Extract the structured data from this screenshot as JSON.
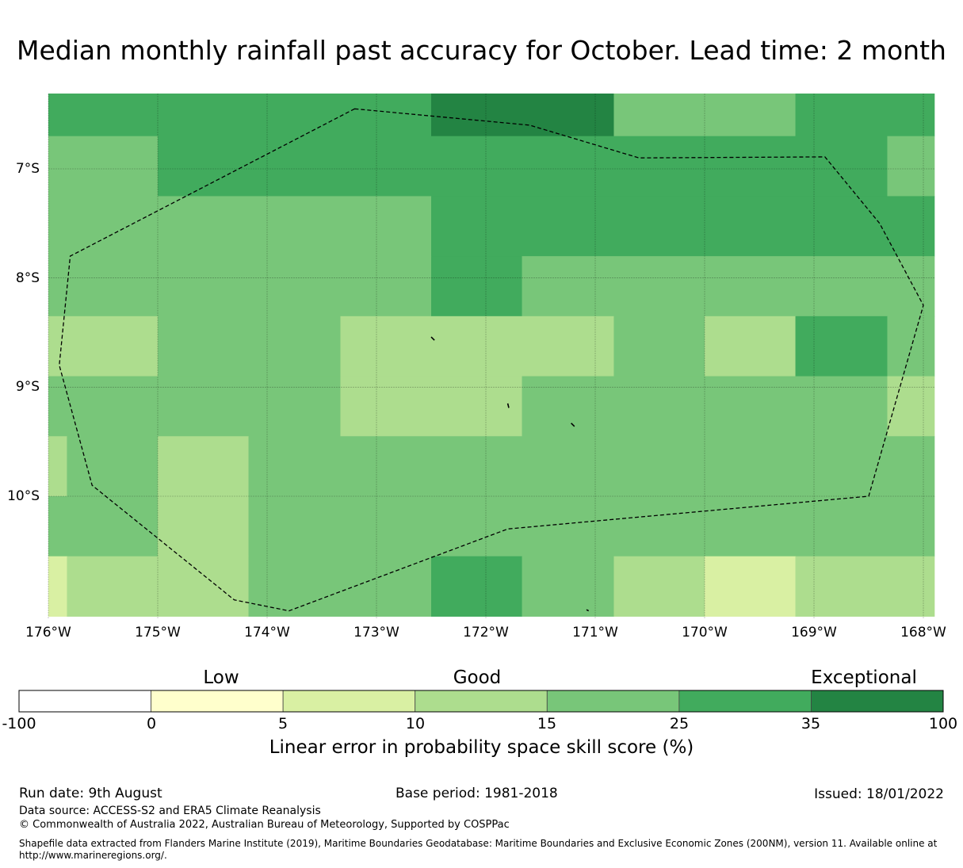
{
  "title": "Median monthly rainfall past accuracy for October. Lead time: 2 month",
  "map": {
    "lon_range": [
      -176,
      -167.9
    ],
    "lat_range": [
      -11.1,
      -6.3
    ],
    "lat_labels": [
      "7°S",
      "8°S",
      "9°S",
      "10°S"
    ],
    "lon_labels": [
      "176°W",
      "175°W",
      "174°W",
      "173°W",
      "172°W",
      "171°W",
      "170°W",
      "169°W",
      "168°W"
    ],
    "eez_boundary": [
      [
        -173.2,
        -6.45
      ],
      [
        -171.6,
        -6.6
      ],
      [
        -170.6,
        -6.9
      ],
      [
        -168.9,
        -6.89
      ],
      [
        -168.4,
        -7.5
      ],
      [
        -168.0,
        -8.25
      ],
      [
        -168.5,
        -10.0
      ],
      [
        -171.8,
        -10.3
      ],
      [
        -173.8,
        -11.05
      ],
      [
        -174.3,
        -10.95
      ],
      [
        -175.6,
        -9.9
      ],
      [
        -175.9,
        -8.8
      ],
      [
        -175.8,
        -7.8
      ],
      [
        -173.2,
        -6.45
      ]
    ],
    "skill_grid": [
      {
        "lon": [
          -176,
          -175
        ],
        "lat": [
          -6.3,
          -6.7
        ],
        "class": 5
      },
      {
        "lon": [
          -175,
          -172.5
        ],
        "lat": [
          -6.3,
          -6.7
        ],
        "class": 5
      },
      {
        "lon": [
          -172.5,
          -170.83
        ],
        "lat": [
          -6.3,
          -6.7
        ],
        "class": 6
      },
      {
        "lon": [
          -170.83,
          -169.17
        ],
        "lat": [
          -6.3,
          -6.7
        ],
        "class": 4
      },
      {
        "lon": [
          -169.17,
          -167.9
        ],
        "lat": [
          -6.3,
          -6.7
        ],
        "class": 5
      },
      {
        "lon": [
          -176,
          -175
        ],
        "lat": [
          -6.7,
          -7.25
        ],
        "class": 4
      },
      {
        "lon": [
          -175,
          -168.33
        ],
        "lat": [
          -6.7,
          -7.25
        ],
        "class": 5
      },
      {
        "lon": [
          -168.33,
          -167.9
        ],
        "lat": [
          -6.7,
          -7.25
        ],
        "class": 4
      },
      {
        "lon": [
          -176,
          -172.5
        ],
        "lat": [
          -7.25,
          -7.8
        ],
        "class": 4
      },
      {
        "lon": [
          -172.5,
          -167.9
        ],
        "lat": [
          -7.25,
          -7.8
        ],
        "class": 5
      },
      {
        "lon": [
          -176,
          -172.5
        ],
        "lat": [
          -7.8,
          -8.35
        ],
        "class": 4
      },
      {
        "lon": [
          -172.5,
          -171.67
        ],
        "lat": [
          -7.8,
          -8.35
        ],
        "class": 5
      },
      {
        "lon": [
          -171.67,
          -167.9
        ],
        "lat": [
          -7.8,
          -8.35
        ],
        "class": 4
      },
      {
        "lon": [
          -176,
          -175
        ],
        "lat": [
          -8.35,
          -8.9
        ],
        "class": 3
      },
      {
        "lon": [
          -175,
          -173.33
        ],
        "lat": [
          -8.35,
          -8.9
        ],
        "class": 4
      },
      {
        "lon": [
          -173.33,
          -170.83
        ],
        "lat": [
          -8.35,
          -8.9
        ],
        "class": 3
      },
      {
        "lon": [
          -170.83,
          -170.0
        ],
        "lat": [
          -8.35,
          -8.9
        ],
        "class": 4
      },
      {
        "lon": [
          -170.0,
          -169.17
        ],
        "lat": [
          -8.35,
          -8.9
        ],
        "class": 3
      },
      {
        "lon": [
          -169.17,
          -168.33
        ],
        "lat": [
          -8.35,
          -8.9
        ],
        "class": 5
      },
      {
        "lon": [
          -168.33,
          -167.9
        ],
        "lat": [
          -8.35,
          -8.9
        ],
        "class": 4
      },
      {
        "lon": [
          -176,
          -173.33
        ],
        "lat": [
          -8.9,
          -9.45
        ],
        "class": 4
      },
      {
        "lon": [
          -173.33,
          -171.67
        ],
        "lat": [
          -8.9,
          -9.45
        ],
        "class": 3
      },
      {
        "lon": [
          -171.67,
          -168.33
        ],
        "lat": [
          -8.9,
          -9.45
        ],
        "class": 4
      },
      {
        "lon": [
          -168.33,
          -167.9
        ],
        "lat": [
          -8.9,
          -9.45
        ],
        "class": 3
      },
      {
        "lon": [
          -176,
          -175.83
        ],
        "lat": [
          -9.45,
          -10.0
        ],
        "class": 3
      },
      {
        "lon": [
          -175.83,
          -175
        ],
        "lat": [
          -9.45,
          -10.0
        ],
        "class": 4
      },
      {
        "lon": [
          -175,
          -174.17
        ],
        "lat": [
          -9.45,
          -10.0
        ],
        "class": 3
      },
      {
        "lon": [
          -174.17,
          -167.9
        ],
        "lat": [
          -9.45,
          -10.0
        ],
        "class": 4
      },
      {
        "lon": [
          -176,
          -175
        ],
        "lat": [
          -10.0,
          -10.55
        ],
        "class": 4
      },
      {
        "lon": [
          -175,
          -174.17
        ],
        "lat": [
          -10.0,
          -10.55
        ],
        "class": 3
      },
      {
        "lon": [
          -174.17,
          -167.9
        ],
        "lat": [
          -10.0,
          -10.55
        ],
        "class": 4
      },
      {
        "lon": [
          -176,
          -175.83
        ],
        "lat": [
          -10.55,
          -11.1
        ],
        "class": 2
      },
      {
        "lon": [
          -175.83,
          -174.17
        ],
        "lat": [
          -10.55,
          -11.1
        ],
        "class": 3
      },
      {
        "lon": [
          -174.17,
          -172.5
        ],
        "lat": [
          -10.55,
          -11.1
        ],
        "class": 4
      },
      {
        "lon": [
          -172.5,
          -171.67
        ],
        "lat": [
          -10.55,
          -11.1
        ],
        "class": 5
      },
      {
        "lon": [
          -171.67,
          -170.83
        ],
        "lat": [
          -10.55,
          -11.1
        ],
        "class": 4
      },
      {
        "lon": [
          -170.83,
          -170.0
        ],
        "lat": [
          -10.55,
          -11.1
        ],
        "class": 3
      },
      {
        "lon": [
          -170.0,
          -169.17
        ],
        "lat": [
          -10.55,
          -11.1
        ],
        "class": 2
      },
      {
        "lon": [
          -169.17,
          -167.9
        ],
        "lat": [
          -10.55,
          -11.1
        ],
        "class": 3
      }
    ],
    "islands": [
      [
        [
          -172.5,
          -8.54
        ],
        [
          -172.47,
          -8.57
        ]
      ],
      [
        [
          -171.8,
          -9.15
        ],
        [
          -171.79,
          -9.19
        ]
      ],
      [
        [
          -171.22,
          -9.33
        ],
        [
          -171.19,
          -9.36
        ]
      ],
      [
        [
          -171.08,
          -11.04
        ],
        [
          -171.06,
          -11.05
        ]
      ]
    ]
  },
  "colorbar": {
    "categories": [
      "Low",
      "Good",
      "Exceptional"
    ],
    "ticks": [
      "-100",
      "0",
      "5",
      "10",
      "15",
      "25",
      "35",
      "100"
    ],
    "colors": [
      "#ffffff",
      "#ffffcc",
      "#d9f0a3",
      "#addd8e",
      "#78c679",
      "#41ab5d",
      "#238443"
    ],
    "label": "Linear error in probability space skill score (%)"
  },
  "footer": {
    "run_date": "Run date: 9th August",
    "base_period": "Base period: 1981-2018",
    "issued": "Issued: 18/01/2022",
    "data_source": "Data source: ACCESS-S2 and ERA5 Climate Reanalysis",
    "copyright": "© Commonwealth of Australia 2022, Australian Bureau of Meteorology, Supported by COSPPac",
    "shapefile": "Shapefile data extracted from Flanders Marine Institute (2019), Maritime Boundaries Geodatabase: Maritime Boundaries and Exclusive Economic Zones (200NM), version 11. Available online at http://www.marineregions.org/."
  }
}
